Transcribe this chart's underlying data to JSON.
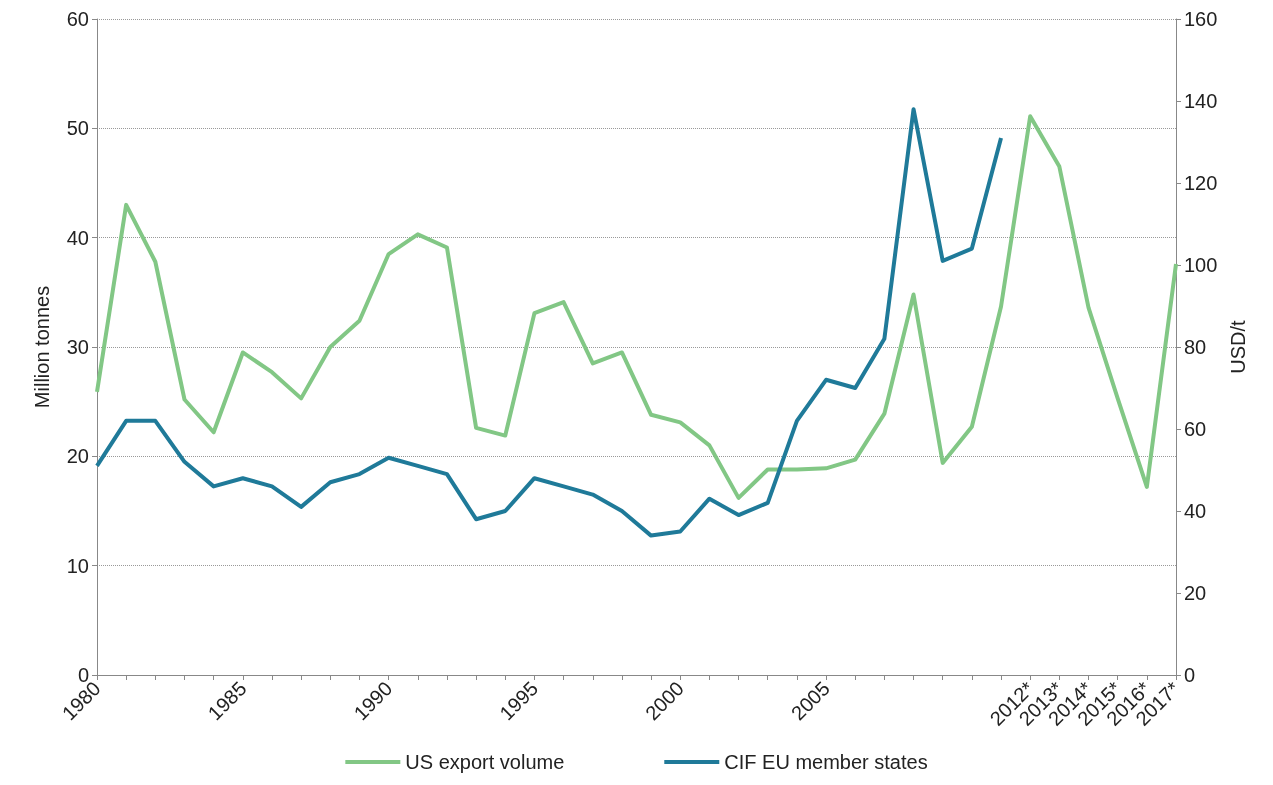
{
  "chart_data": {
    "type": "line",
    "categories": [
      "1980",
      null,
      null,
      null,
      null,
      "1985",
      null,
      null,
      null,
      null,
      "1990",
      null,
      null,
      null,
      null,
      "1995",
      null,
      null,
      null,
      null,
      "2000",
      null,
      null,
      null,
      null,
      "2005",
      null,
      null,
      null,
      null,
      null,
      null,
      "2012*",
      "2013*",
      "2014*",
      "2015*",
      "2016*",
      "2017*"
    ],
    "series": [
      {
        "name": "US export volume",
        "color": "#82c785",
        "values": [
          25.9,
          43.0,
          37.8,
          25.2,
          22.2,
          29.5,
          27.7,
          25.3,
          30.0,
          32.4,
          38.5,
          40.3,
          39.1,
          22.6,
          21.9,
          33.1,
          34.1,
          28.5,
          29.5,
          23.8,
          23.1,
          21.0,
          16.2,
          18.8,
          18.8,
          18.9,
          19.7,
          23.9,
          34.8,
          19.4,
          22.7,
          33.7,
          51.1,
          46.5,
          33.6,
          25.3,
          17.2,
          37.6
        ]
      },
      {
        "name": "CIF EU member states",
        "color": "#1f7a99",
        "axis": "y2",
        "values": [
          51,
          62,
          62,
          52,
          46,
          48,
          46,
          41,
          47,
          49,
          53,
          51,
          49,
          38,
          40,
          48,
          46,
          44,
          40,
          34,
          35,
          43,
          39,
          42,
          62,
          72,
          70,
          82,
          138,
          101,
          104,
          131,
          null,
          null,
          null,
          null,
          null,
          null
        ]
      }
    ],
    "ylabel": "Million tonnes",
    "y2label": "USD/t",
    "ylim": [
      0,
      60
    ],
    "yticks": [
      0,
      10,
      20,
      30,
      40,
      50,
      60
    ],
    "y2lim": [
      0,
      160
    ],
    "y2ticks": [
      0,
      20,
      40,
      60,
      80,
      100,
      120,
      140,
      160
    ],
    "grid": "y",
    "legend": "bottom",
    "marker": "none",
    "line_style": "solid"
  }
}
